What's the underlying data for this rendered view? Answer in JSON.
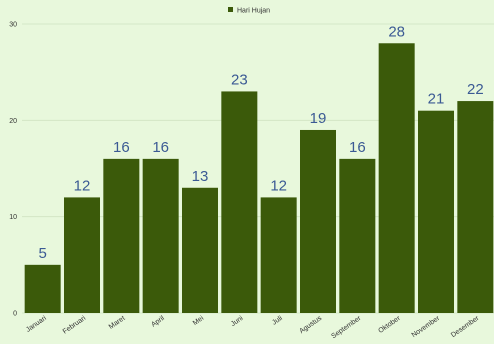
{
  "chart_data": {
    "type": "bar",
    "categories": [
      "Januari",
      "Februari",
      "Maret",
      "April",
      "Mei",
      "Juni",
      "Juli",
      "Agustus",
      "September",
      "Oktober",
      "November",
      "Desember"
    ],
    "series": [
      {
        "name": "Hari Hujan",
        "values": [
          5,
          12,
          16,
          16,
          13,
          23,
          12,
          19,
          16,
          28,
          21,
          22
        ]
      }
    ],
    "ylim": [
      0,
      30
    ],
    "yticks": [
      0,
      10,
      20,
      30
    ],
    "grid": true,
    "legend_position": "top-center",
    "colors": {
      "bar": "#3b5a0a",
      "data_label": "#3b5a94",
      "background": "#e8f8dc"
    }
  }
}
